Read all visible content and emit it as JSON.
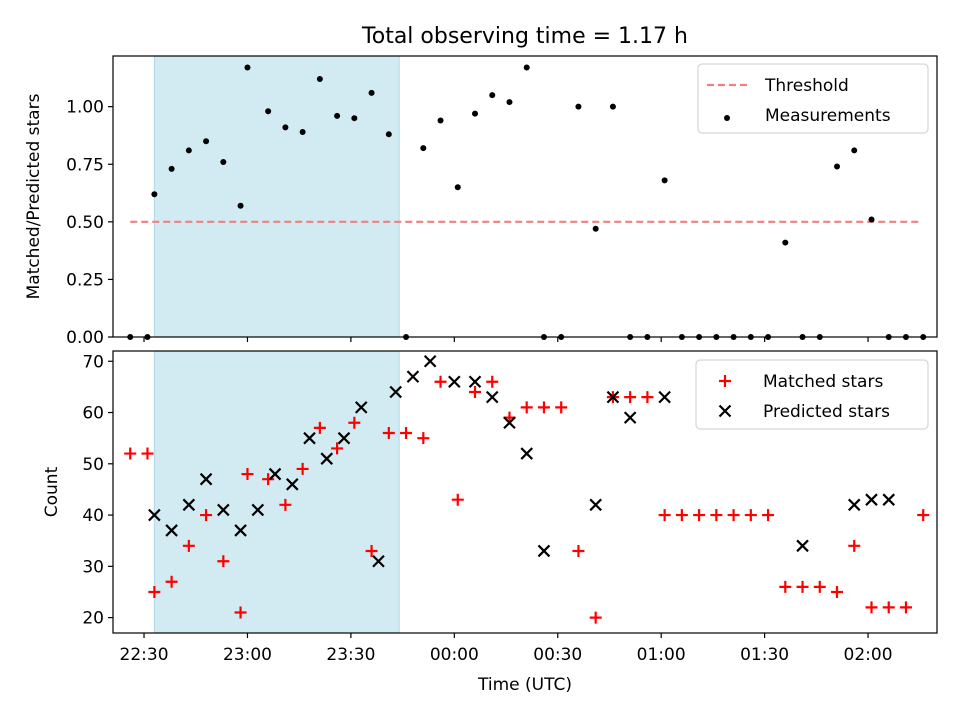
{
  "title": "Total observing time = 1.17 h",
  "chart_data": [
    {
      "type": "scatter",
      "ylabel": "Matched/Predicted stars",
      "xlabel": "",
      "xlim": [
        "22:21",
        "02:20"
      ],
      "ylim": [
        0,
        1.22
      ],
      "yticks": [
        "0.00",
        "0.25",
        "0.50",
        "0.75",
        "1.00"
      ],
      "shaded_interval": [
        "22:33",
        "23:44"
      ],
      "legend": {
        "location": "top-right",
        "entries": [
          "Threshold",
          "Measurements"
        ]
      },
      "series": [
        {
          "name": "Threshold",
          "kind": "dashed-line",
          "color": "#f08080",
          "x": [
            "22:26",
            "02:15"
          ],
          "y": [
            0.5,
            0.5
          ]
        },
        {
          "name": "Measurements",
          "kind": "dot",
          "color": "#000000",
          "x": [
            "22:26",
            "22:31",
            "22:33",
            "22:38",
            "22:43",
            "22:48",
            "22:53",
            "22:58",
            "23:00",
            "23:06",
            "23:11",
            "23:16",
            "23:21",
            "23:26",
            "23:31",
            "23:36",
            "23:41",
            "23:46",
            "23:51",
            "23:56",
            "00:01",
            "00:06",
            "00:11",
            "00:16",
            "00:21",
            "00:26",
            "00:31",
            "00:36",
            "00:41",
            "00:46",
            "00:51",
            "00:56",
            "01:01",
            "01:06",
            "01:11",
            "01:16",
            "01:21",
            "01:26",
            "01:31",
            "01:36",
            "01:41",
            "01:46",
            "01:51",
            "01:56",
            "02:01",
            "02:06",
            "02:11",
            "02:16"
          ],
          "y": [
            0,
            0,
            0.62,
            0.73,
            0.81,
            0.85,
            0.76,
            0.57,
            1.17,
            0.98,
            0.91,
            0.89,
            1.12,
            0.96,
            0.95,
            1.06,
            0.88,
            0,
            0.82,
            0.94,
            0.65,
            0.97,
            1.05,
            1.02,
            1.17,
            0,
            0,
            1.0,
            0.47,
            1.0,
            0,
            0,
            0.68,
            0,
            0,
            0,
            0,
            0,
            0,
            0.41,
            0,
            0,
            0.74,
            0.81,
            0.51,
            0,
            0,
            0
          ]
        }
      ]
    },
    {
      "type": "scatter",
      "ylabel": "Count",
      "xlabel": "Time (UTC)",
      "xlim": [
        "22:21",
        "02:20"
      ],
      "ylim": [
        17,
        72
      ],
      "yticks": [
        "20",
        "30",
        "40",
        "50",
        "60",
        "70"
      ],
      "xticks": [
        "22:30",
        "23:00",
        "23:30",
        "00:00",
        "00:30",
        "01:00",
        "01:30",
        "02:00"
      ],
      "shaded_interval": [
        "22:33",
        "23:44"
      ],
      "legend": {
        "location": "top-right",
        "entries": [
          "Matched stars",
          "Predicted stars"
        ]
      },
      "series": [
        {
          "name": "Matched stars",
          "marker": "+",
          "color": "#ff0000",
          "x": [
            "22:26",
            "22:31",
            "22:33",
            "22:38",
            "22:43",
            "22:48",
            "22:53",
            "22:58",
            "23:00",
            "23:06",
            "23:11",
            "23:16",
            "23:21",
            "23:26",
            "23:31",
            "23:36",
            "23:41",
            "23:46",
            "23:51",
            "23:56",
            "00:01",
            "00:06",
            "00:11",
            "00:16",
            "00:21",
            "00:26",
            "00:31",
            "00:36",
            "00:41",
            "00:46",
            "00:51",
            "00:56",
            "01:01",
            "01:06",
            "01:11",
            "01:16",
            "01:21",
            "01:26",
            "01:31",
            "01:36",
            "01:41",
            "01:46",
            "01:51",
            "01:56",
            "02:01",
            "02:06",
            "02:11",
            "02:16"
          ],
          "y": [
            52,
            52,
            25,
            27,
            34,
            40,
            31,
            21,
            48,
            47,
            42,
            49,
            57,
            53,
            58,
            33,
            56,
            56,
            55,
            66,
            43,
            64,
            66,
            59,
            61,
            61,
            61,
            33,
            20,
            63,
            63,
            63,
            40,
            40,
            40,
            40,
            40,
            40,
            40,
            26,
            26,
            26,
            25,
            34,
            22,
            22,
            22,
            40
          ]
        },
        {
          "name": "Predicted stars",
          "marker": "x",
          "color": "#000000",
          "x": [
            "22:33",
            "22:38",
            "22:43",
            "22:48",
            "22:53",
            "22:58",
            "23:03",
            "23:08",
            "23:13",
            "23:18",
            "23:23",
            "23:28",
            "23:33",
            "23:38",
            "23:43",
            "23:48",
            "23:53",
            "00:00",
            "00:06",
            "00:11",
            "00:16",
            "00:21",
            "00:26",
            "00:41",
            "00:46",
            "00:51",
            "01:01",
            "01:41",
            "01:56",
            "02:01",
            "02:06"
          ],
          "y": [
            40,
            37,
            42,
            47,
            41,
            37,
            41,
            48,
            46,
            55,
            51,
            55,
            61,
            31,
            64,
            67,
            70,
            66,
            66,
            63,
            58,
            52,
            33,
            42,
            63,
            59,
            63,
            34,
            42,
            43,
            43
          ]
        }
      ]
    }
  ]
}
